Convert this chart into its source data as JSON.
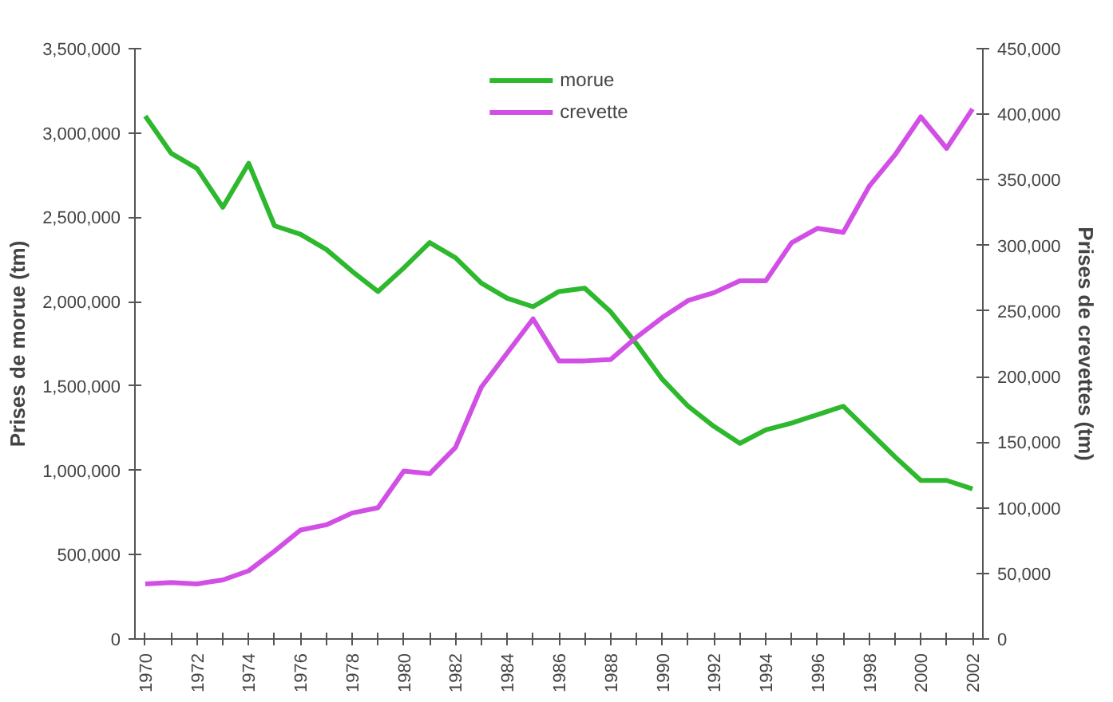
{
  "chart_data": {
    "type": "line",
    "ylabel": "Prises de morue (tm)",
    "y2label": "Prises de crevettes (tm)",
    "x": [
      1970,
      1971,
      1972,
      1973,
      1974,
      1975,
      1976,
      1977,
      1978,
      1979,
      1980,
      1981,
      1982,
      1983,
      1984,
      1985,
      1986,
      1987,
      1988,
      1989,
      1990,
      1991,
      1992,
      1993,
      1994,
      1995,
      1996,
      1997,
      1998,
      1999,
      2000,
      2001,
      2002
    ],
    "series": [
      {
        "name": "morue",
        "color": "#2db82d",
        "values": [
          3100000,
          2880000,
          2790000,
          2560000,
          2820000,
          2450000,
          2400000,
          2310000,
          2180000,
          2060000,
          2200000,
          2350000,
          2260000,
          2110000,
          2020000,
          1970000,
          2060000,
          2080000,
          1940000,
          1750000,
          1540000,
          1380000,
          1260000,
          1160000,
          1240000,
          1280000,
          1330000,
          1380000,
          1230000,
          1080000,
          940000,
          940000,
          890000
        ]
      },
      {
        "name": "crevette",
        "color": "#d24fe6",
        "axis": "y2",
        "values": [
          42000,
          43000,
          42000,
          45000,
          52000,
          67000,
          83000,
          87000,
          96000,
          100000,
          128000,
          126000,
          146000,
          192000,
          218000,
          244000,
          212000,
          212000,
          213000,
          230000,
          245000,
          258000,
          264000,
          273000,
          273000,
          302000,
          313000,
          310000,
          345000,
          369000,
          398000,
          374000,
          404000
        ]
      }
    ],
    "xlim": [
      1969.6,
      2002.4
    ],
    "xticks": [
      1970,
      {
        "value": 1971,
        "label": null
      },
      1972,
      {
        "value": 1973,
        "label": null
      },
      1974,
      {
        "value": 1975,
        "label": null
      },
      1976,
      {
        "value": 1977,
        "label": null
      },
      1978,
      {
        "value": 1979,
        "label": null
      },
      1980,
      {
        "value": 1981,
        "label": null
      },
      1982,
      {
        "value": 1983,
        "label": null
      },
      1984,
      {
        "value": 1985,
        "label": null
      },
      1986,
      {
        "value": 1987,
        "label": null
      },
      1988,
      {
        "value": 1989,
        "label": null
      },
      1990,
      {
        "value": 1991,
        "label": null
      },
      1992,
      {
        "value": 1993,
        "label": null
      },
      1994,
      {
        "value": 1995,
        "label": null
      },
      1996,
      {
        "value": 1997,
        "label": null
      },
      1998,
      {
        "value": 1999,
        "label": null
      },
      2000,
      {
        "value": 2001,
        "label": null
      },
      2002
    ],
    "ylim": [
      0,
      3500000
    ],
    "yticks": [
      {
        "value": 0,
        "label": "0"
      },
      {
        "value": 500000,
        "label": "500,000"
      },
      {
        "value": 1000000,
        "label": "1,000,000"
      },
      {
        "value": 1500000,
        "label": "1,500,000"
      },
      {
        "value": 2000000,
        "label": "2,000,000"
      },
      {
        "value": 2500000,
        "label": "2,500,000"
      },
      {
        "value": 3000000,
        "label": "3,000,000"
      },
      {
        "value": 3500000,
        "label": "3,500,000"
      }
    ],
    "y2lim": [
      0,
      450000
    ],
    "y2ticks": [
      {
        "value": 0,
        "label": "0"
      },
      {
        "value": 50000,
        "label": "50,000"
      },
      {
        "value": 100000,
        "label": "100,000"
      },
      {
        "value": 150000,
        "label": "150,000"
      },
      {
        "value": 200000,
        "label": "200,000"
      },
      {
        "value": 250000,
        "label": "250,000"
      },
      {
        "value": 300000,
        "label": "300,000"
      },
      {
        "value": 350000,
        "label": "350,000"
      },
      {
        "value": 400000,
        "label": "400,000"
      },
      {
        "value": 450000,
        "label": "450,000"
      }
    ],
    "grid": false,
    "legend": "top",
    "marker": "none",
    "line_style": "solid"
  }
}
